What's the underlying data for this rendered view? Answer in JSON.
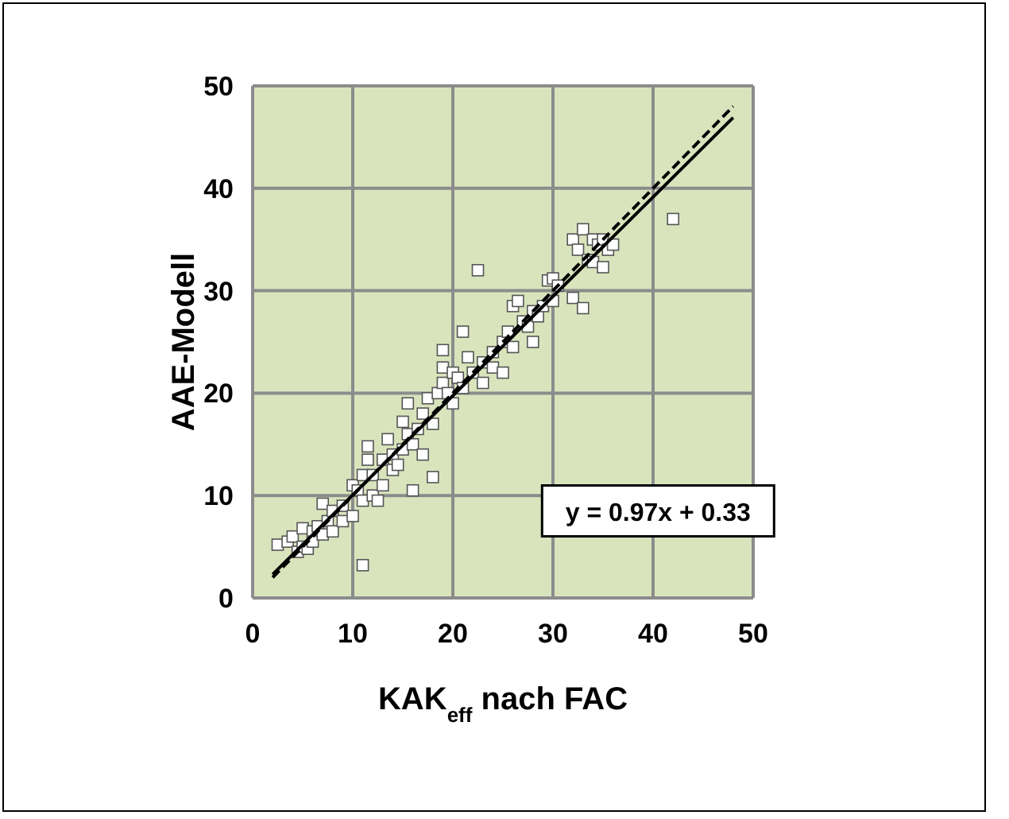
{
  "chart_data": {
    "type": "scatter",
    "xlabel": "KAK$_{eff}$ nach FAC",
    "ylabel": "AAE-Modell",
    "xlim": [
      0,
      50
    ],
    "ylim": [
      0,
      50
    ],
    "xticks": [
      0,
      10,
      20,
      30,
      40,
      50
    ],
    "yticks": [
      0,
      10,
      20,
      30,
      40,
      50
    ],
    "grid": true,
    "annotations": [
      "y = 0.97x + 0.33"
    ],
    "series": [
      {
        "color": "#ffffff",
        "marker": "square",
        "x": [
          2.5,
          3.5,
          4,
          4.5,
          5,
          5,
          5.5,
          6,
          6,
          6.5,
          7,
          7,
          7.5,
          8,
          8,
          9,
          9,
          10,
          10,
          10.5,
          11,
          11,
          11,
          11.5,
          11.5,
          12,
          12,
          12.5,
          13,
          13,
          13.5,
          14,
          14,
          14.5,
          15,
          15,
          15.5,
          15.5,
          16,
          16,
          16.5,
          17,
          17,
          17.5,
          18,
          18,
          18.5,
          19,
          19,
          19,
          19.5,
          20,
          20,
          20.5,
          21,
          21,
          21.5,
          22,
          22.5,
          23,
          23,
          24,
          24,
          25,
          25,
          25.5,
          26,
          26,
          26.5,
          27,
          27.5,
          28,
          28,
          28.5,
          29,
          29.5,
          30,
          30,
          30.5,
          32,
          32,
          32.5,
          33,
          33,
          33.5,
          34,
          34,
          34.5,
          35,
          35,
          35.5,
          36,
          42
        ],
        "values": [
          5.2,
          5.5,
          6,
          4.5,
          6.8,
          5,
          4.8,
          6.5,
          5.5,
          7,
          9.2,
          6.2,
          7.5,
          8.5,
          6.5,
          9,
          7.5,
          8,
          11,
          10.5,
          3.2,
          12,
          9.5,
          14.8,
          13.5,
          10,
          12,
          9.5,
          11,
          13.5,
          15.5,
          12.5,
          14,
          13,
          14.5,
          17.2,
          16,
          19,
          10.5,
          15,
          16.5,
          18,
          14,
          19.5,
          11.8,
          17,
          20,
          21,
          24.2,
          22.5,
          20,
          19,
          22,
          21.5,
          26,
          20.5,
          23.5,
          22,
          32,
          21,
          23,
          22.5,
          24,
          22,
          25,
          26,
          28.5,
          24.5,
          29,
          27,
          26.5,
          25,
          28,
          27.5,
          28.5,
          31,
          31.2,
          29,
          30.5,
          35,
          29.3,
          34,
          28.3,
          36,
          33,
          35,
          32.8,
          34.5,
          32.3,
          35,
          34,
          34.5,
          37
        ]
      },
      {
        "type": "line",
        "color": "#000000",
        "line_style": "solid",
        "x": [
          2,
          48
        ],
        "values": [
          2.3,
          46.9
        ]
      },
      {
        "type": "line",
        "color": "#000000",
        "line_style": "dashed",
        "x": [
          2,
          48
        ],
        "values": [
          2,
          48
        ]
      }
    ]
  }
}
